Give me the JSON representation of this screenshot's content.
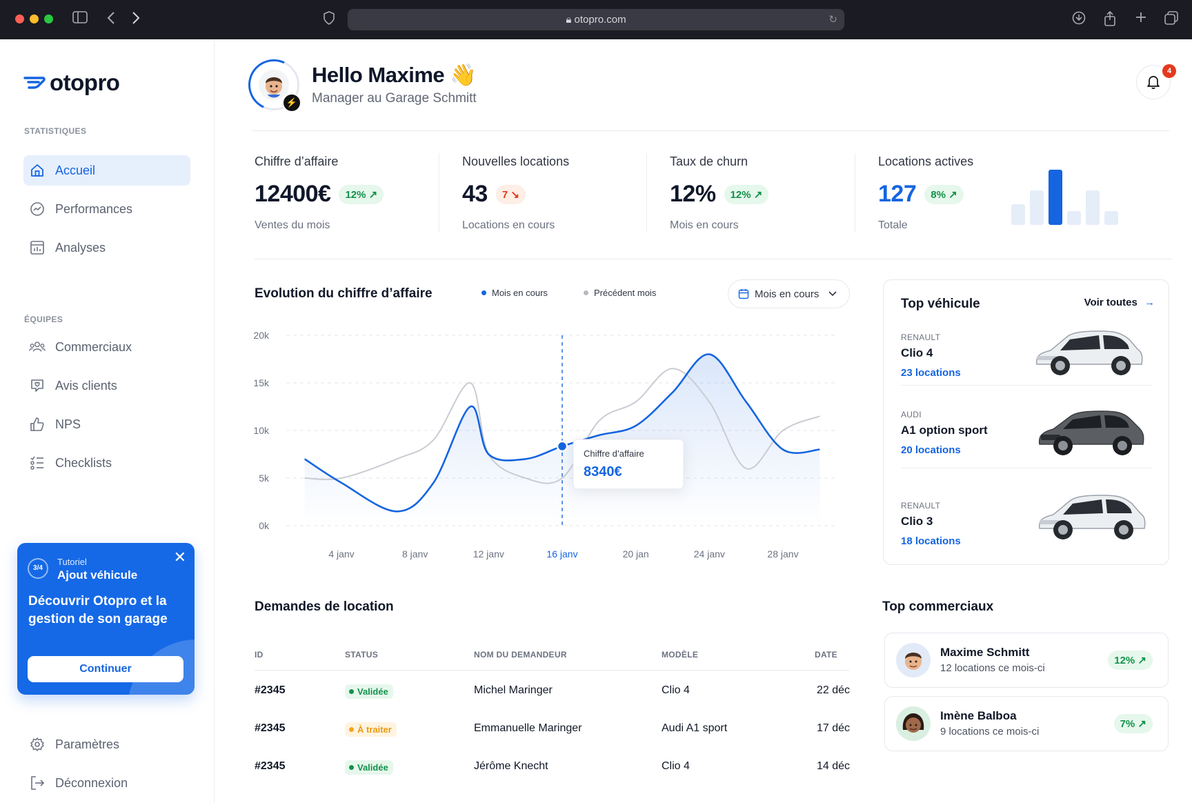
{
  "browser": {
    "url": "otopro.com"
  },
  "brand": {
    "name": "otopro",
    "color": "#1565e0"
  },
  "sidebar": {
    "section_stats": "STATISTIQUES",
    "section_teams": "ÉQUIPES",
    "items": [
      {
        "label": "Accueil",
        "icon": "home-icon",
        "active": true
      },
      {
        "label": "Performances",
        "icon": "trend-icon"
      },
      {
        "label": "Analyses",
        "icon": "chart-icon"
      },
      {
        "label": "Commerciaux",
        "icon": "users-icon"
      },
      {
        "label": "Avis clients",
        "icon": "review-icon"
      },
      {
        "label": "NPS",
        "icon": "thumbs-up-icon"
      },
      {
        "label": "Checklists",
        "icon": "checklist-icon"
      }
    ],
    "footer": [
      {
        "label": "Paramètres",
        "icon": "gear-icon"
      },
      {
        "label": "Déconnexion",
        "icon": "logout-icon"
      }
    ]
  },
  "tutorial": {
    "progress": "3/4",
    "small": "Tutoriel",
    "title": "Ajout véhicule",
    "description": "Découvrir Otopro et la gestion de son garage",
    "button": "Continuer"
  },
  "header": {
    "greeting": "Hello Maxime 👋",
    "subtitle": "Manager au Garage Schmitt",
    "notifications": "4"
  },
  "kpis": [
    {
      "label": "Chiffre d’affaire",
      "value": "12400€",
      "delta": "12% ↗",
      "trend": "up",
      "foot": "Ventes du mois"
    },
    {
      "label": "Nouvelles locations",
      "value": "43",
      "delta": "7 ↘",
      "trend": "down",
      "foot": "Locations en cours"
    },
    {
      "label": "Taux de churn",
      "value": "12%",
      "delta": "12% ↗",
      "trend": "up",
      "foot": "Mois en cours"
    },
    {
      "label": "Locations actives",
      "value": "127",
      "delta": "8% ↗",
      "trend": "up",
      "foot": "Totale"
    }
  ],
  "chart": {
    "title": "Evolution du chiffre d’affaire",
    "legend_current": "Mois en cours",
    "legend_previous": "Précédent mois",
    "period": "Mois en cours",
    "tooltip_label": "Chiffre d’affaire",
    "tooltip_value": "8340€"
  },
  "chart_data": {
    "type": "area",
    "title": "Evolution du chiffre d’affaire",
    "y_ticks": [
      "20k",
      "15k",
      "10k",
      "5k",
      "0k"
    ],
    "ylim": [
      0,
      20000
    ],
    "x_labels": [
      "4 janv",
      "8 janv",
      "12 janv",
      "16 janv",
      "20 jan",
      "24 janv",
      "28 janv"
    ],
    "highlight_index": 3,
    "series": [
      {
        "name": "Mois en cours",
        "color": "#1565e0",
        "x": [
          2,
          4,
          7,
          9,
          11,
          12,
          14,
          16,
          18,
          20,
          22,
          24,
          26,
          28,
          30
        ],
        "values": [
          7000,
          4500,
          1500,
          4500,
          12500,
          7500,
          7000,
          8340,
          9500,
          10500,
          14000,
          18000,
          13000,
          8000,
          8000
        ]
      },
      {
        "name": "Précédent mois",
        "color": "#c9ccd3",
        "x": [
          2,
          4,
          7,
          9,
          11,
          12,
          14,
          16,
          18,
          20,
          22,
          24,
          26,
          28,
          30
        ],
        "values": [
          5000,
          5000,
          7000,
          9000,
          15000,
          7500,
          5000,
          5000,
          11000,
          13000,
          16500,
          13000,
          6000,
          10000,
          11500
        ]
      }
    ],
    "mini_bars": {
      "color_active": "#1565e0",
      "color_inactive": "#e5edf9",
      "values": [
        3,
        5,
        8,
        2,
        5,
        2
      ],
      "active_index": 2
    }
  },
  "top_vehicles": {
    "title": "Top véhicule",
    "link": "Voir toutes",
    "items": [
      {
        "brand": "RENAULT",
        "model": "Clio 4",
        "locations": "23 locations",
        "car_color": "#e9ecef"
      },
      {
        "brand": "AUDI",
        "model": "A1 option sport",
        "locations": "20 locations",
        "car_color": "#5b5e62"
      },
      {
        "brand": "RENAULT",
        "model": "Clio 3",
        "locations": "18 locations",
        "car_color": "#e9ecef"
      }
    ]
  },
  "requests": {
    "title": "Demandes de location",
    "columns": [
      "ID",
      "STATUS",
      "NOM DU DEMANDEUR",
      "MODÈLE",
      "DATE"
    ],
    "rows": [
      {
        "id": "#2345",
        "status": "Validée",
        "status_type": "ok",
        "name": "Michel Maringer",
        "model": "Clio 4",
        "date": "22 déc"
      },
      {
        "id": "#2345",
        "status": "À traiter",
        "status_type": "wait",
        "name": "Emmanuelle Maringer",
        "model": "Audi A1 sport",
        "date": "17 déc"
      },
      {
        "id": "#2345",
        "status": "Validée",
        "status_type": "ok",
        "name": "Jérôme Knecht",
        "model": "Clio 4",
        "date": "14 déc"
      }
    ]
  },
  "top_sales": {
    "title": "Top commerciaux",
    "items": [
      {
        "name": "Maxime Schmitt",
        "sub": "12 locations ce mois-ci",
        "delta": "12% ↗"
      },
      {
        "name": "Imène Balboa",
        "sub": "9 locations ce mois-ci",
        "delta": "7% ↗"
      }
    ]
  }
}
